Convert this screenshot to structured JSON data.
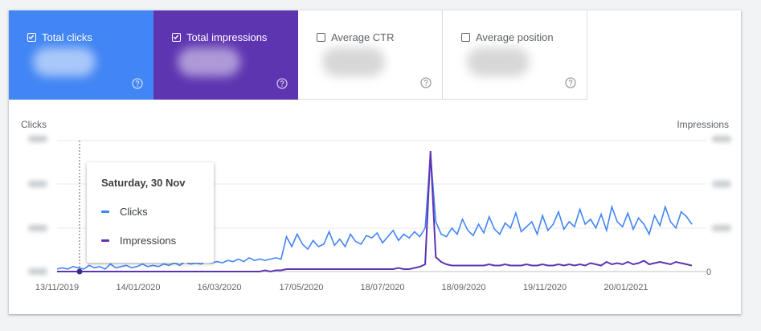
{
  "metrics": [
    {
      "label": "Total clicks",
      "checked": true,
      "bg": "#4285f4"
    },
    {
      "label": "Total impressions",
      "checked": true,
      "bg": "#5e35b1"
    },
    {
      "label": "Average CTR",
      "checked": false
    },
    {
      "label": "Average position",
      "checked": false
    }
  ],
  "chart": {
    "left_axis_title": "Clicks",
    "right_axis_title": "Impressions",
    "right_zero_label": "0",
    "x_ticks": [
      "13/11/2019",
      "14/01/2020",
      "16/03/2020",
      "17/05/2020",
      "18/07/2020",
      "18/09/2020",
      "19/11/2020",
      "20/01/2021"
    ]
  },
  "tooltip": {
    "date": "Saturday, 30 Nov",
    "items": [
      {
        "label": "Clicks",
        "color": "#4285f4"
      },
      {
        "label": "Impressions",
        "color": "#5e35b1"
      }
    ]
  },
  "chart_data": {
    "type": "line",
    "x_ticks": [
      "13/11/2019",
      "14/01/2020",
      "16/03/2020",
      "17/05/2020",
      "18/07/2020",
      "18/09/2020",
      "19/11/2020",
      "20/01/2021"
    ],
    "xlabel": "",
    "ylabel_left": "Clicks",
    "ylabel_right": "Impressions",
    "grid": true,
    "series": [
      {
        "name": "Clicks",
        "color": "#4285f4",
        "axis": "left",
        "note_values": "relative levels (axis numbers blurred)",
        "values": [
          0.02,
          0.03,
          0.02,
          0.04,
          0.03,
          0.02,
          0.05,
          0.03,
          0.04,
          0.02,
          0.06,
          0.03,
          0.04,
          0.05,
          0.03,
          0.04,
          0.06,
          0.04,
          0.05,
          0.04,
          0.06,
          0.05,
          0.07,
          0.05,
          0.08,
          0.06,
          0.07,
          0.06,
          0.09,
          0.07,
          0.08,
          0.07,
          0.09,
          0.08,
          0.1,
          0.08,
          0.11,
          0.09,
          0.1,
          0.09,
          0.1,
          0.11,
          0.1,
          0.28,
          0.2,
          0.3,
          0.22,
          0.18,
          0.25,
          0.2,
          0.22,
          0.32,
          0.21,
          0.26,
          0.2,
          0.3,
          0.24,
          0.22,
          0.29,
          0.27,
          0.31,
          0.23,
          0.28,
          0.33,
          0.25,
          0.3,
          0.27,
          0.32,
          0.28,
          0.35,
          0.95,
          0.4,
          0.3,
          0.28,
          0.35,
          0.3,
          0.42,
          0.33,
          0.29,
          0.38,
          0.31,
          0.44,
          0.34,
          0.3,
          0.39,
          0.35,
          0.47,
          0.32,
          0.36,
          0.4,
          0.3,
          0.45,
          0.33,
          0.38,
          0.48,
          0.34,
          0.4,
          0.36,
          0.5,
          0.38,
          0.42,
          0.35,
          0.46,
          0.33,
          0.52,
          0.4,
          0.36,
          0.47,
          0.34,
          0.43,
          0.38,
          0.3,
          0.45,
          0.37,
          0.52,
          0.4,
          0.35,
          0.48,
          0.44,
          0.38
        ]
      },
      {
        "name": "Impressions",
        "color": "#5e35b1",
        "axis": "right",
        "note_values": "relative levels (axis numbers blurred)",
        "values": [
          0.0,
          0.0,
          0.0,
          0.0,
          0.0,
          0.0,
          0.0,
          0.0,
          0.0,
          0.0,
          0.0,
          0.0,
          0.0,
          0.0,
          0.0,
          0.0,
          0.0,
          0.0,
          0.0,
          0.0,
          0.0,
          0.0,
          0.0,
          0.0,
          0.0,
          0.0,
          0.0,
          0.0,
          0.0,
          0.0,
          0.0,
          0.0,
          0.0,
          0.0,
          0.0,
          0.0,
          0.0,
          0.0,
          0.0,
          0.01,
          0.0,
          0.01,
          0.01,
          0.02,
          0.02,
          0.02,
          0.02,
          0.02,
          0.02,
          0.02,
          0.02,
          0.02,
          0.02,
          0.02,
          0.02,
          0.02,
          0.02,
          0.02,
          0.02,
          0.02,
          0.02,
          0.02,
          0.02,
          0.02,
          0.03,
          0.02,
          0.02,
          0.03,
          0.04,
          0.06,
          1.0,
          0.12,
          0.08,
          0.06,
          0.05,
          0.05,
          0.05,
          0.05,
          0.05,
          0.05,
          0.05,
          0.06,
          0.05,
          0.05,
          0.06,
          0.05,
          0.05,
          0.05,
          0.06,
          0.05,
          0.05,
          0.06,
          0.05,
          0.05,
          0.06,
          0.05,
          0.06,
          0.05,
          0.06,
          0.05,
          0.07,
          0.06,
          0.05,
          0.08,
          0.06,
          0.07,
          0.06,
          0.08,
          0.06,
          0.07,
          0.09,
          0.06,
          0.07,
          0.08,
          0.07,
          0.06,
          0.08,
          0.07,
          0.06,
          0.05
        ]
      }
    ]
  }
}
